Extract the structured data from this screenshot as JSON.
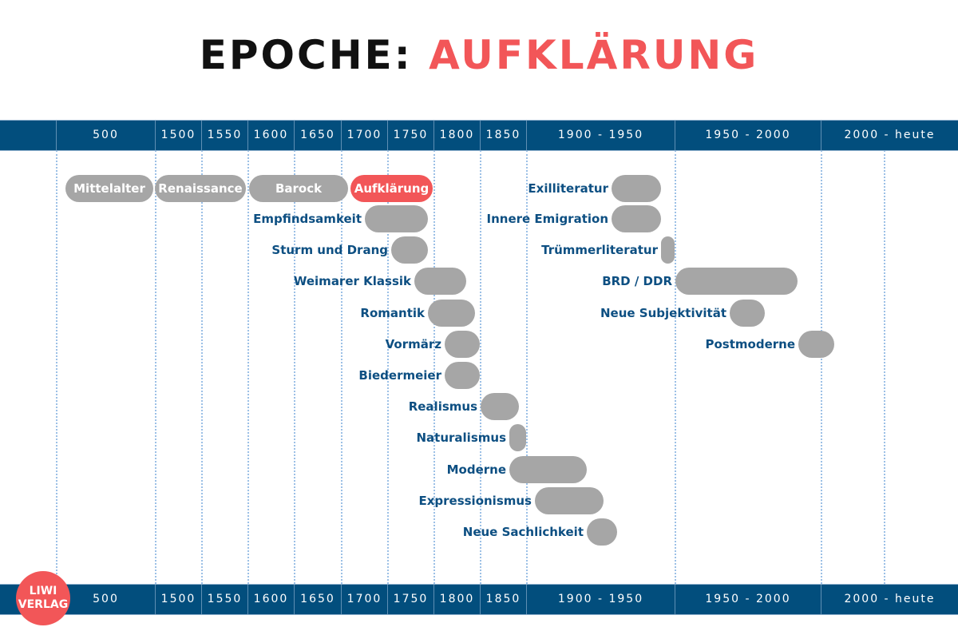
{
  "title": {
    "prefix": "EPOCHE:",
    "highlight": "AUFKLÄRUNG"
  },
  "colors": {
    "band": "#024e7d",
    "accent": "#f25658",
    "bar": "#a6a6a6",
    "label": "#0d4f82"
  },
  "timeline_labels": [
    "500",
    "1500",
    "1550",
    "1600",
    "1650",
    "1700",
    "1750",
    "1800",
    "1850",
    "1900 - 1950",
    "1950 - 2000",
    "2000 - heute"
  ],
  "epochs_inside": [
    "Mittelalter",
    "Renaissance",
    "Barock",
    "Aufklärung"
  ],
  "active_epoch": "Aufklärung",
  "epochs": [
    "Empfindsamkeit",
    "Sturm und Drang",
    "Weimarer Klassik",
    "Romantik",
    "Vormärz",
    "Biedermeier",
    "Realismus",
    "Naturalismus",
    "Moderne",
    "Expressionismus",
    "Neue Sachlichkeit",
    "Exilliteratur",
    "Innere Emigration",
    "Trümmerliteratur",
    "BRD / DDR",
    "Neue Subjektivität",
    "Postmoderne"
  ],
  "logo": {
    "line1": "LIWI",
    "line2": "VERLAG"
  }
}
